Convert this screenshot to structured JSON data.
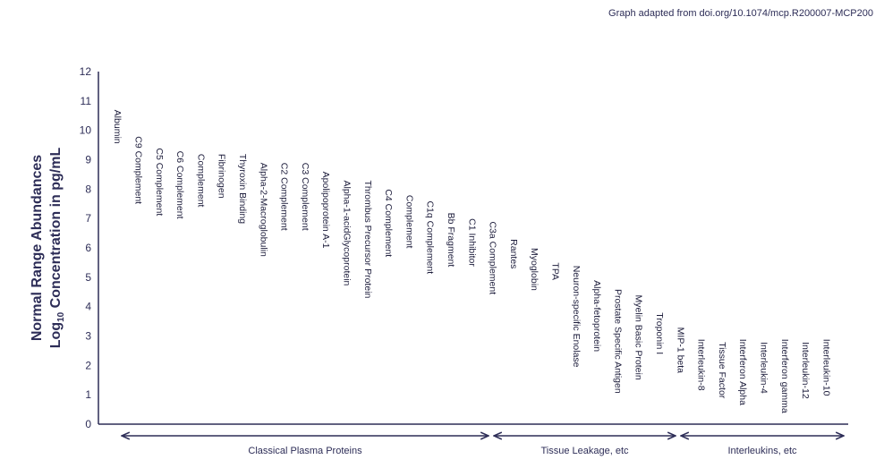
{
  "credit": "Graph adapted from doi.org/10.1074/mcp.R200007-MCP200",
  "chart_data": {
    "type": "scatter",
    "title": "",
    "ylabel_line1": "Normal Range Abundances",
    "ylabel_line2_pre": "Log",
    "ylabel_line2_sub": "10",
    "ylabel_line2_post": " Concentration in pg/mL",
    "ylim": [
      0,
      12
    ],
    "yticks": [
      "0",
      "1",
      "2",
      "3",
      "4",
      "5",
      "6",
      "7",
      "8",
      "9",
      "10",
      "11",
      "12"
    ],
    "grid": false,
    "labels": [
      "Albumin",
      "C9 Complement",
      "C5 Complement",
      "C6 Complement",
      "Complement",
      "Fibrinogen",
      "Thyroxin Binding",
      "Alpha-2-Macroglobulin",
      "C2 Complement",
      "C3 Complement",
      "Apolipoprotein A-1",
      "Alpha-1-acidGlycoprotein",
      "Thrombus Precursor Protein",
      "C4 Complement",
      "Complement",
      "C1q Complement",
      "Bb Fragment",
      "C1 Inhibitor",
      "C3a Complement",
      "Rantes",
      "Myoglobin",
      "TPA",
      "Neuron-specific Enolase",
      "Alpha-fetoprotein",
      "Prostate Specific Antigen",
      "Myelin Basic Protein",
      "Troponin I",
      "MIP-1 beta",
      "Interleukin-8",
      "Tissue Factor",
      "Interferon Alpha",
      "Interleukin-4",
      "Interferon gamma",
      "Interleukin-12",
      "Interleukin-10"
    ],
    "values": [
      10.7,
      9.8,
      9.4,
      9.3,
      9.2,
      9.2,
      9.2,
      8.9,
      8.9,
      8.9,
      8.6,
      8.3,
      8.3,
      8.0,
      7.8,
      7.6,
      7.2,
      7.0,
      6.9,
      6.3,
      6.0,
      5.5,
      5.4,
      4.9,
      4.6,
      4.4,
      3.8,
      3.3,
      2.9,
      2.8,
      2.9,
      2.8,
      2.9,
      2.8,
      2.9
    ],
    "groups": [
      {
        "name": "Classical Plasma Proteins",
        "start": 0,
        "end": 18
      },
      {
        "name": "Tissue Leakage, etc",
        "start": 19,
        "end": 26
      },
      {
        "name": "Interleukins, etc",
        "start": 27,
        "end": 34
      }
    ]
  }
}
